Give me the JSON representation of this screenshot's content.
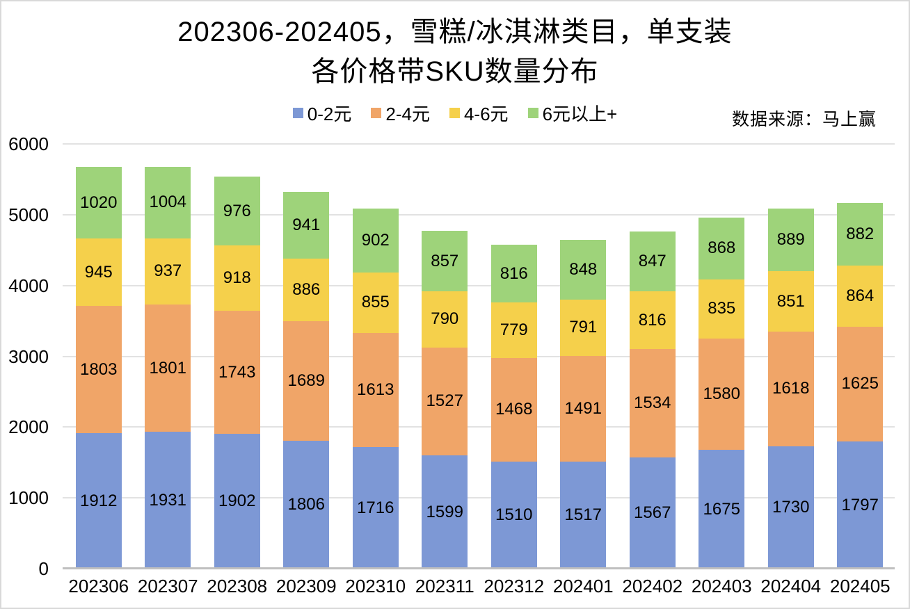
{
  "title": {
    "line1": "202306-202405，雪糕/冰淇淋类目，单支装",
    "line2": "各价格带SKU数量分布"
  },
  "source_note": "数据来源：马上赢",
  "colors": {
    "band_0_2": "#7d98d5",
    "band_2_4": "#f0a568",
    "band_4_6": "#f5d04b",
    "band_6_plus": "#9ed37a",
    "gridline": "#e2e2e2",
    "axis_line": "#bfbfbf"
  },
  "chart_data": {
    "type": "bar",
    "stacked": true,
    "title": "202306-202405，雪糕/冰淇淋类目，单支装 各价格带SKU数量分布",
    "xlabel": "",
    "ylabel": "",
    "ylim": [
      0,
      6000
    ],
    "ytick_step": 1000,
    "yticks": [
      0,
      1000,
      2000,
      3000,
      4000,
      5000,
      6000
    ],
    "grid": true,
    "legend_position": "top",
    "categories": [
      "202306",
      "202307",
      "202308",
      "202309",
      "202310",
      "202311",
      "202312",
      "202401",
      "202402",
      "202403",
      "202404",
      "202405"
    ],
    "series": [
      {
        "name": "0-2元",
        "color": "#7d98d5",
        "values": [
          1912,
          1931,
          1902,
          1806,
          1716,
          1599,
          1510,
          1517,
          1567,
          1675,
          1730,
          1797
        ]
      },
      {
        "name": "2-4元",
        "color": "#f0a568",
        "values": [
          1803,
          1801,
          1743,
          1689,
          1613,
          1527,
          1468,
          1491,
          1534,
          1580,
          1618,
          1625
        ]
      },
      {
        "name": "4-6元",
        "color": "#f5d04b",
        "values": [
          945,
          937,
          918,
          886,
          855,
          790,
          779,
          791,
          816,
          835,
          851,
          864
        ]
      },
      {
        "name": "6元以上+",
        "color": "#9ed37a",
        "values": [
          1020,
          1004,
          976,
          941,
          902,
          857,
          816,
          848,
          847,
          868,
          889,
          882
        ]
      }
    ]
  }
}
